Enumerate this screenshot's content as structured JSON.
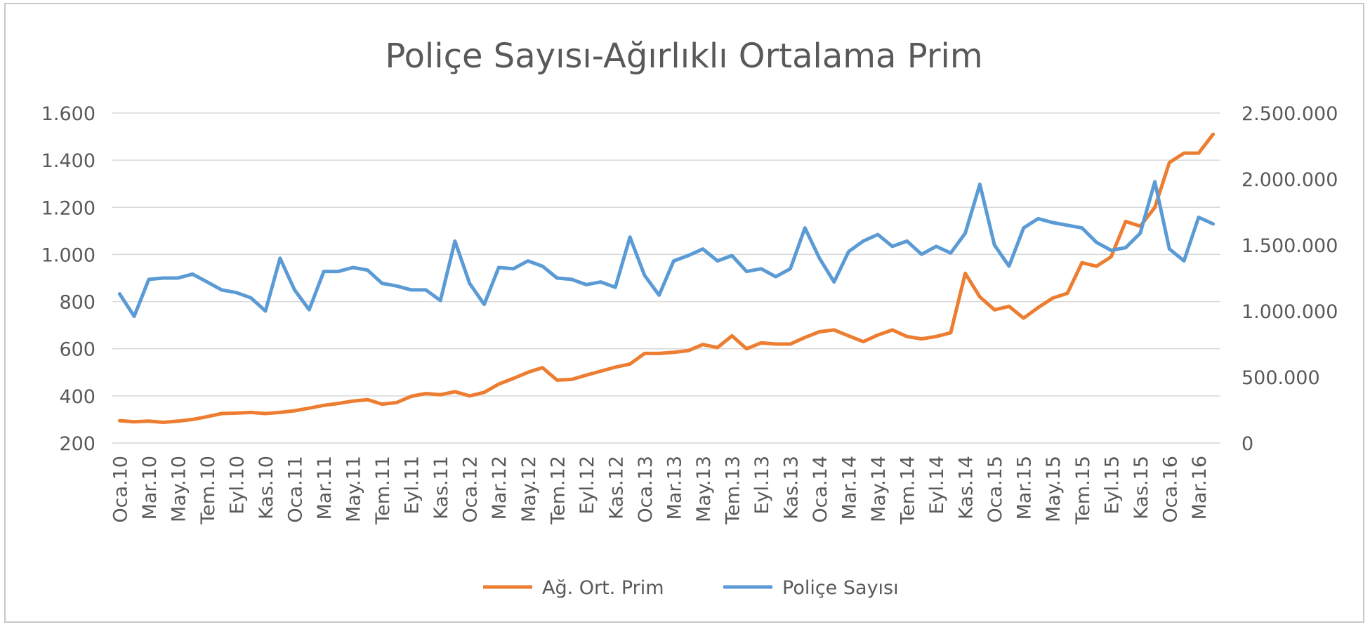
{
  "chart_data": {
    "type": "line",
    "title": "Poliçe Sayısı-Ağırlıklı Ortalama Prim",
    "xlabel": "",
    "ylabel": "",
    "ylim": [
      200,
      1600
    ],
    "y_ticks": [
      "1.600",
      "1.400",
      "1.200",
      "1.000",
      "800",
      "600",
      "400",
      "200"
    ],
    "y_tick_values": [
      1600,
      1400,
      1200,
      1000,
      800,
      600,
      400,
      200
    ],
    "y2lim": [
      0,
      2500000
    ],
    "y2_ticks": [
      "2.500.000",
      "2.000.000",
      "1.500.000",
      "1.000.000",
      "500.000",
      "0"
    ],
    "y2_tick_values": [
      2500000,
      2000000,
      1500000,
      1000000,
      500000,
      0
    ],
    "x": [
      "Oca.10",
      "Şub.10",
      "Mar.10",
      "Nis.10",
      "May.10",
      "Haz.10",
      "Tem.10",
      "Ağu.10",
      "Eyl.10",
      "Eki.10",
      "Kas.10",
      "Ara.10",
      "Oca.11",
      "Şub.11",
      "Mar.11",
      "Nis.11",
      "May.11",
      "Haz.11",
      "Tem.11",
      "Ağu.11",
      "Eyl.11",
      "Eki.11",
      "Kas.11",
      "Ara.11",
      "Oca.12",
      "Şub.12",
      "Mar.12",
      "Nis.12",
      "May.12",
      "Haz.12",
      "Tem.12",
      "Ağu.12",
      "Eyl.12",
      "Eki.12",
      "Kas.12",
      "Ara.12",
      "Oca.13",
      "Şub.13",
      "Mar.13",
      "Nis.13",
      "May.13",
      "Haz.13",
      "Tem.13",
      "Ağu.13",
      "Eyl.13",
      "Eki.13",
      "Kas.13",
      "Ara.13",
      "Oca.14",
      "Şub.14",
      "Mar.14",
      "Nis.14",
      "May.14",
      "Haz.14",
      "Tem.14",
      "Ağu.14",
      "Eyl.14",
      "Eki.14",
      "Kas.14",
      "Ara.14",
      "Oca.15",
      "Şub.15",
      "Mar.15",
      "Nis.15",
      "May.15",
      "Haz.15",
      "Tem.15",
      "Ağu.15",
      "Eyl.15",
      "Eki.15",
      "Kas.15",
      "Ara.15",
      "Oca.16",
      "Şub.16",
      "Mar.16",
      "Nis.16"
    ],
    "x_tick_labels": [
      "Oca.10",
      "Mar.10",
      "May.10",
      "Tem.10",
      "Eyl.10",
      "Kas.10",
      "Oca.11",
      "Mar.11",
      "May.11",
      "Tem.11",
      "Eyl.11",
      "Kas.11",
      "Oca.12",
      "Mar.12",
      "May.12",
      "Tem.12",
      "Eyl.12",
      "Kas.12",
      "Oca.13",
      "Mar.13",
      "May.13",
      "Tem.13",
      "Eyl.13",
      "Kas.13",
      "Oca.14",
      "Mar.14",
      "May.14",
      "Tem.14",
      "Eyl.14",
      "Kas.14",
      "Oca.15",
      "Mar.15",
      "May.15",
      "Tem.15",
      "Eyl.15",
      "Kas.15",
      "Oca.16",
      "Mar.16"
    ],
    "x_tick_every": 2,
    "series": [
      {
        "name": "Ağ. Ort. Prim",
        "axis": "left",
        "color": "#ED7D31",
        "values": [
          295,
          290,
          293,
          288,
          293,
          300,
          312,
          325,
          327,
          330,
          325,
          330,
          337,
          348,
          360,
          368,
          378,
          384,
          365,
          372,
          398,
          410,
          405,
          418,
          400,
          415,
          450,
          474,
          500,
          520,
          467,
          470,
          488,
          505,
          522,
          535,
          580,
          580,
          585,
          592,
          618,
          605,
          655,
          600,
          625,
          620,
          620,
          648,
          672,
          680,
          655,
          630,
          658,
          680,
          652,
          642,
          652,
          668,
          920,
          820,
          765,
          780,
          730,
          775,
          815,
          835,
          965,
          950,
          990,
          1140,
          1120,
          1200,
          1390,
          1430,
          1430,
          1510
        ]
      },
      {
        "name": "Poliçe Sayısı",
        "axis": "right",
        "color": "#5B9BD5",
        "values": [
          1130000,
          960000,
          1240000,
          1250000,
          1250000,
          1280000,
          1220000,
          1160000,
          1140000,
          1100000,
          1000000,
          1400000,
          1160000,
          1010000,
          1300000,
          1300000,
          1330000,
          1310000,
          1210000,
          1190000,
          1160000,
          1160000,
          1080000,
          1530000,
          1210000,
          1050000,
          1330000,
          1320000,
          1380000,
          1340000,
          1250000,
          1240000,
          1200000,
          1220000,
          1180000,
          1560000,
          1270000,
          1120000,
          1380000,
          1420000,
          1470000,
          1380000,
          1420000,
          1300000,
          1320000,
          1260000,
          1320000,
          1630000,
          1400000,
          1220000,
          1450000,
          1530000,
          1580000,
          1490000,
          1530000,
          1430000,
          1490000,
          1440000,
          1590000,
          1960000,
          1500000,
          1340000,
          1630000,
          1700000,
          1670000,
          1650000,
          1630000,
          1520000,
          1460000,
          1480000,
          1590000,
          1980000,
          1470000,
          1380000,
          1710000,
          1660000
        ]
      }
    ],
    "legend_position": "bottom",
    "grid": "horizontal"
  }
}
